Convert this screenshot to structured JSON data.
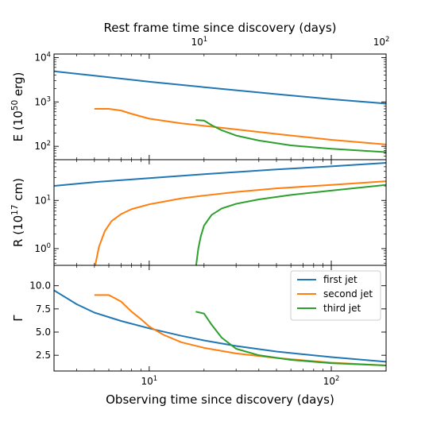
{
  "chart_data": {
    "type": "line",
    "x_scale": "log",
    "xlabel": "Observing time since discovery (days)",
    "xlim": [
      3,
      200
    ],
    "x_tick_labels": [
      "10^1",
      "10^2"
    ],
    "top_axis": {
      "label": "Rest frame time since discovery (days)",
      "tick_labels": [
        "10^1",
        "10^2"
      ]
    },
    "panels": [
      {
        "id": "energy",
        "ylabel": "E (10^50 erg)",
        "y_scale": "log",
        "ylim": [
          50,
          12000
        ],
        "y_tick_labels": [
          "10^2",
          "10^3",
          "10^4"
        ],
        "series": [
          {
            "name": "first jet",
            "color": "#1f77b4",
            "x": [
              3,
              5,
              10,
              20,
              50,
              100,
              200
            ],
            "y": [
              4900,
              3900,
              2850,
              2150,
              1500,
              1150,
              920
            ]
          },
          {
            "name": "second jet",
            "color": "#ff7f0e",
            "x": [
              5,
              6,
              7,
              8,
              10,
              15,
              20,
              30,
              50,
              100,
              200
            ],
            "y": [
              700,
              700,
              640,
              540,
              420,
              330,
              290,
              240,
              190,
              140,
              110
            ]
          },
          {
            "name": "third jet",
            "color": "#2ca02c",
            "x": [
              18,
              20,
              22,
              25,
              30,
              40,
              60,
              100,
              200
            ],
            "y": [
              390,
              380,
              300,
              230,
              175,
              135,
              105,
              88,
              74
            ]
          }
        ]
      },
      {
        "id": "radius",
        "ylabel": "R (10^17 cm)",
        "y_scale": "log",
        "ylim": [
          0.45,
          70
        ],
        "y_tick_labels": [
          "10^0",
          "10^1"
        ],
        "series": [
          {
            "name": "first jet",
            "color": "#1f77b4",
            "x": [
              3,
              5,
              10,
              20,
              50,
              100,
              200
            ],
            "y": [
              20,
              24,
              29,
              35,
              44,
              51,
              60
            ]
          },
          {
            "name": "second jet",
            "color": "#ff7f0e",
            "x": [
              5.05,
              5.3,
              5.7,
              6.2,
              7,
              8,
              10,
              15,
              20,
              30,
              50,
              100,
              200
            ],
            "y": [
              0.45,
              1.1,
              2.3,
              3.7,
              5.2,
              6.6,
              8.3,
              11,
              12.6,
              15,
              17.8,
              21,
              25
            ]
          },
          {
            "name": "third jet",
            "color": "#2ca02c",
            "x": [
              18.1,
              18.6,
              19.2,
              20,
              22,
              25,
              30,
              40,
              60,
              100,
              200
            ],
            "y": [
              0.45,
              1.0,
              1.8,
              3.0,
              5.0,
              6.8,
              8.5,
              10.5,
              13,
              16,
              21
            ]
          }
        ]
      },
      {
        "id": "lorentz",
        "ylabel": "Γ",
        "y_scale": "linear",
        "ylim": [
          0.8,
          12.2
        ],
        "y_tick_labels": [
          "2.5",
          "5.0",
          "7.5",
          "10.0"
        ],
        "legend": {
          "position": "upper right",
          "entries": [
            "first jet",
            "second jet",
            "third jet"
          ]
        },
        "series": [
          {
            "name": "first jet",
            "color": "#1f77b4",
            "x": [
              3,
              4,
              5,
              7,
              10,
              15,
              20,
              30,
              50,
              100,
              200
            ],
            "y": [
              9.5,
              8.0,
              7.1,
              6.2,
              5.4,
              4.6,
              4.1,
              3.5,
              2.9,
              2.3,
              1.8
            ]
          },
          {
            "name": "second jet",
            "color": "#ff7f0e",
            "x": [
              5,
              6,
              7,
              8,
              9,
              10,
              12,
              15,
              20,
              30,
              50,
              100,
              200
            ],
            "y": [
              9.0,
              9.0,
              8.3,
              7.2,
              6.4,
              5.6,
              4.7,
              3.9,
              3.3,
              2.7,
              2.2,
              1.7,
              1.4
            ]
          },
          {
            "name": "third jet",
            "color": "#2ca02c",
            "x": [
              18,
              20,
              22,
              25,
              30,
              40,
              60,
              100,
              200
            ],
            "y": [
              7.2,
              7.0,
              5.8,
              4.4,
              3.2,
              2.5,
              2.0,
              1.65,
              1.4
            ]
          }
        ]
      }
    ]
  }
}
